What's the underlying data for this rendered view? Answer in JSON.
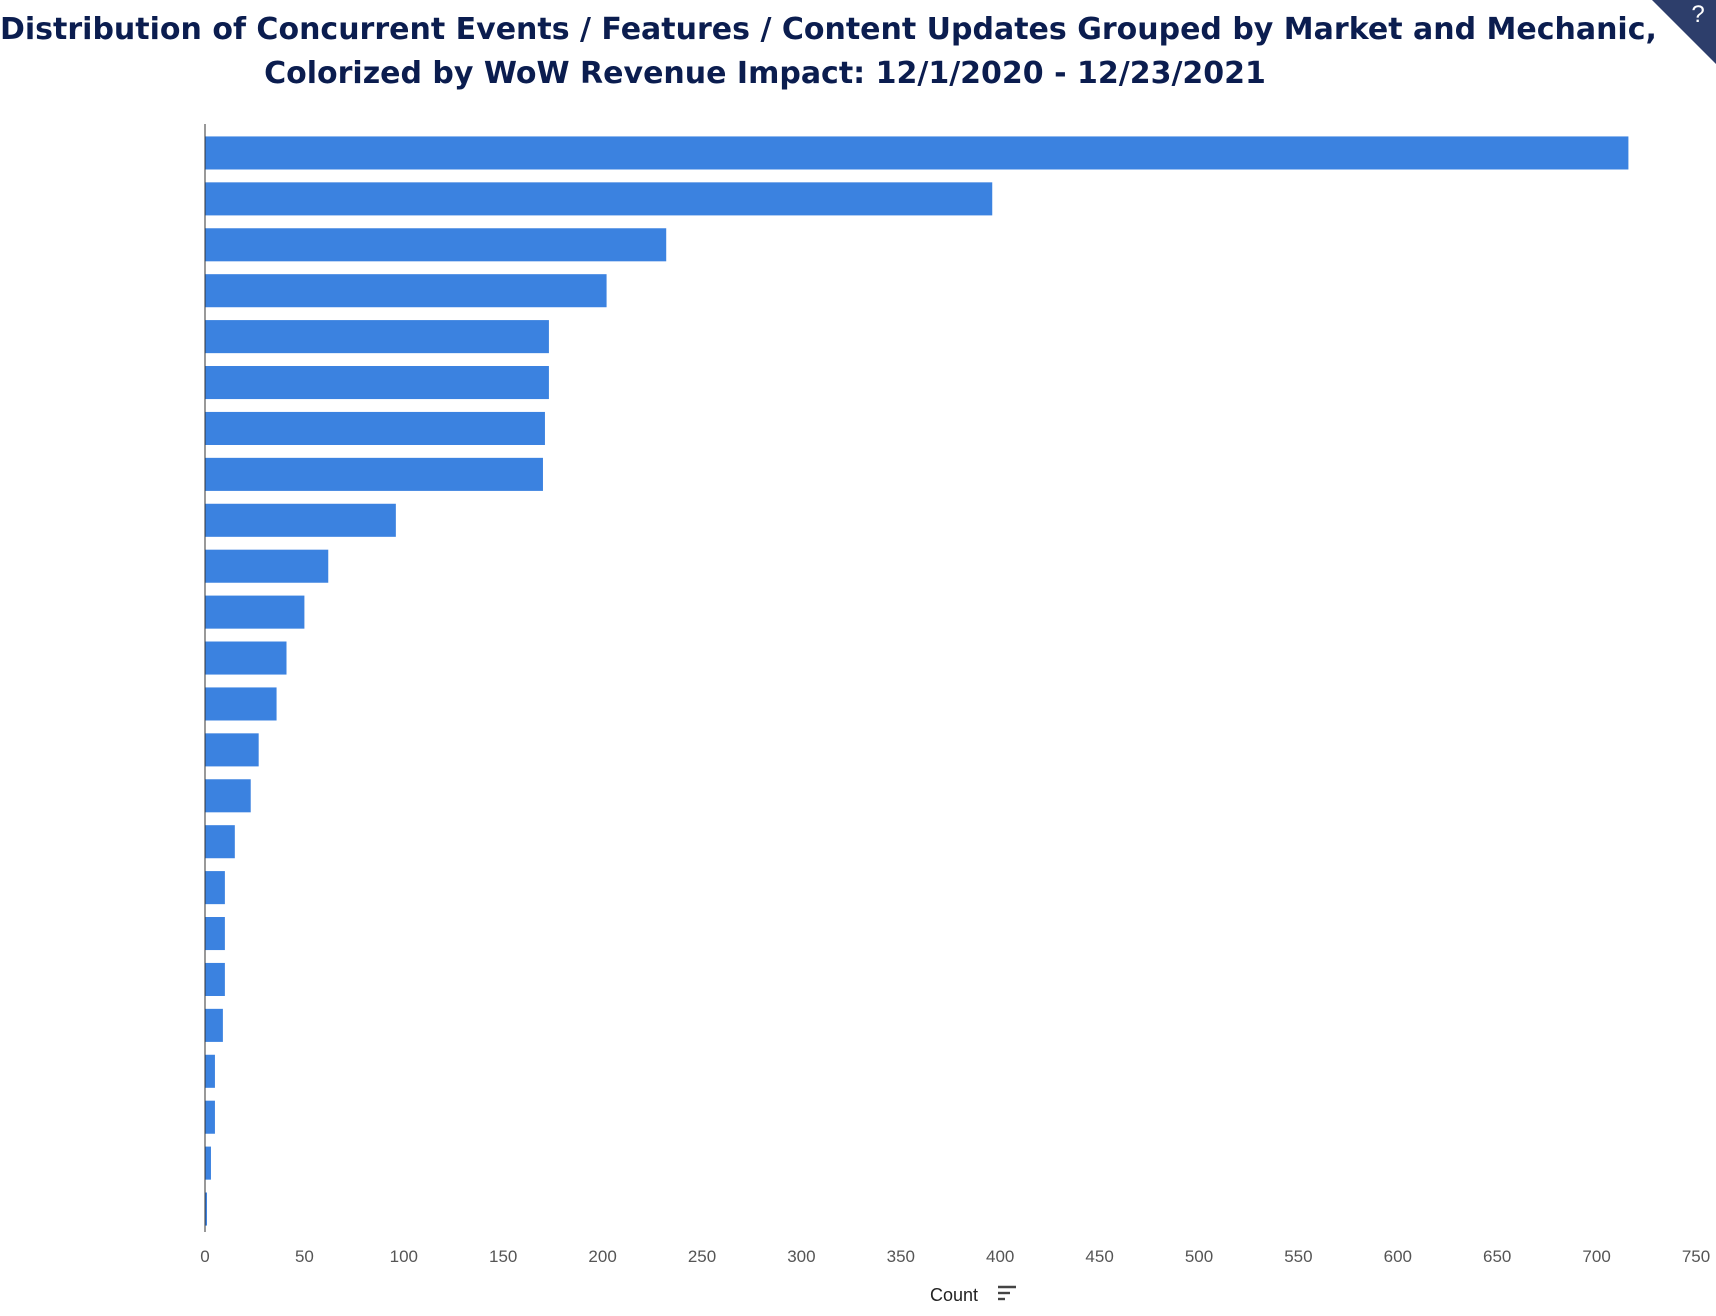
{
  "chart_data": {
    "type": "bar",
    "orientation": "horizontal",
    "title_line1": "Distribution of Concurrent Events / Features / Content Updates Grouped by Market and Mechanic,",
    "title_line2": "Colorized by WoW Revenue Impact: 12/1/2020 - 12/23/2021",
    "xlabel": "Count",
    "xlim": [
      0,
      750
    ],
    "xticks": [
      0,
      50,
      100,
      150,
      200,
      250,
      300,
      350,
      400,
      450,
      500,
      550,
      600,
      650,
      700,
      750
    ],
    "values": [
      716,
      396,
      232,
      202,
      173,
      173,
      171,
      170,
      96,
      62,
      50,
      41,
      36,
      27,
      23,
      15,
      10,
      10,
      10,
      9,
      5,
      5,
      3,
      1
    ],
    "bar_color": "#3b82e0",
    "grid": false
  },
  "help_icon": "question-mark-icon",
  "help_badge_color": "#2d3e6b"
}
